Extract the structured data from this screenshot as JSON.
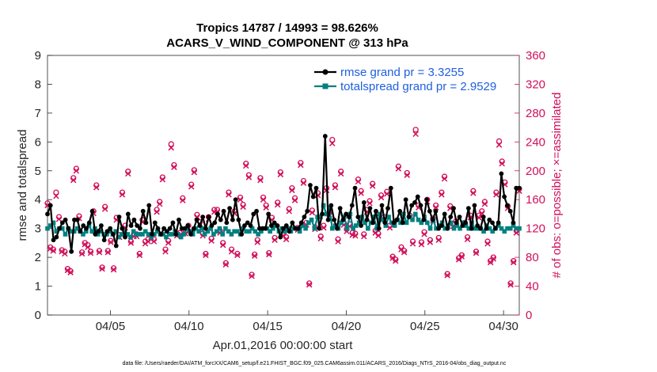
{
  "chart_data": {
    "type": "line",
    "title_line1": "Tropics 14787 / 14993 = 98.626%",
    "title_line2": "ACARS_V_WIND_COMPONENT @ 313 hPa",
    "xlabel": "Apr.01,2016 00:00:00 start",
    "ylabel_left": "rmse and totalspread",
    "ylabel_right": "# of obs: o=possible; ×=assimilated",
    "ylim_left": [
      0,
      9
    ],
    "ylim_right": [
      0,
      360
    ],
    "xlim": [
      1,
      31
    ],
    "yticks_left": [
      0,
      1,
      2,
      3,
      4,
      5,
      6,
      7,
      8,
      9
    ],
    "yticks_right": [
      0,
      40,
      80,
      120,
      160,
      200,
      240,
      280,
      320,
      360
    ],
    "xticks": [
      {
        "value": 5,
        "label": "04/05"
      },
      {
        "value": 10,
        "label": "04/10"
      },
      {
        "value": 15,
        "label": "04/15"
      },
      {
        "value": 20,
        "label": "04/20"
      },
      {
        "value": 25,
        "label": "04/25"
      },
      {
        "value": 30,
        "label": "04/30"
      }
    ],
    "series": [
      {
        "name": "rmse grand pr = 3.3255",
        "color": "#000000",
        "values": [
          3.5,
          3.8,
          2.6,
          2.7,
          3.0,
          3.2,
          3.3,
          3.0,
          2.2,
          3.3,
          3.3,
          2.9,
          3.1,
          3.0,
          3.2,
          3.6,
          2.8,
          2.9,
          3.1,
          2.6,
          2.9,
          3.0,
          2.8,
          2.4,
          3.4,
          3.0,
          2.7,
          3.5,
          3.1,
          3.3,
          3.1,
          3.0,
          3.6,
          3.2,
          3.8,
          2.8,
          3.2,
          3.0,
          2.8,
          3.0,
          2.9,
          3.0,
          3.2,
          2.8,
          3.3,
          3.0,
          3.0,
          3.1,
          2.8,
          3.0,
          3.3,
          3.1,
          3.4,
          3.0,
          3.4,
          3.1,
          3.2,
          3.5,
          3.3,
          3.6,
          3.2,
          3.7,
          3.3,
          4.0,
          3.3,
          2.8,
          3.1,
          3.2,
          3.1,
          3.5,
          3.6,
          3.0,
          3.0,
          3.0,
          3.5,
          3.1,
          3.2,
          3.1,
          2.7,
          3.0,
          3.1,
          2.9,
          3.2,
          3.0,
          3.0,
          3.2,
          3.4,
          3.6,
          4.5,
          4.1,
          4.4,
          3.0,
          3.5,
          6.2,
          3.3,
          3.8,
          3.3,
          3.0,
          3.7,
          3.3,
          3.5,
          3.4,
          3.8,
          4.4,
          3.4,
          3.1,
          3.9,
          3.3,
          3.7,
          3.2,
          3.6,
          3.0,
          3.8,
          3.2,
          3.7,
          4.4,
          3.2,
          3.3,
          3.6,
          3.2,
          4.0,
          3.4,
          3.8,
          3.9,
          4.1,
          3.8,
          3.3,
          4.0,
          3.6,
          3.3,
          3.6,
          3.0,
          3.1,
          3.5,
          3.0,
          3.4,
          3.7,
          3.2,
          3.4,
          3.1,
          3.2,
          3.7,
          3.0,
          3.8,
          3.1,
          3.0,
          3.4,
          3.0,
          3.3,
          3.2,
          3.0,
          3.2,
          4.9,
          4.1,
          3.8,
          3.6,
          3.2,
          4.4,
          4.4
        ]
      },
      {
        "name": "totalspread grand pr = 2.9529",
        "color": "#008080",
        "values": [
          3.0,
          3.1,
          3.2,
          2.9,
          3.0,
          3.0,
          2.8,
          3.0,
          2.9,
          2.9,
          3.0,
          2.9,
          2.8,
          2.9,
          3.1,
          2.9,
          3.0,
          2.8,
          2.9,
          2.8,
          2.8,
          2.9,
          2.8,
          2.9,
          2.7,
          2.8,
          2.9,
          2.8,
          2.7,
          2.9,
          2.8,
          2.8,
          2.8,
          2.9,
          2.8,
          2.7,
          2.8,
          2.9,
          2.8,
          2.8,
          2.7,
          2.8,
          2.8,
          2.9,
          2.8,
          2.7,
          2.8,
          3.0,
          2.9,
          2.8,
          3.0,
          2.9,
          3.0,
          2.8,
          2.9,
          3.0,
          2.8,
          2.9,
          3.0,
          2.8,
          3.0,
          2.9,
          2.8,
          2.9,
          2.9,
          2.8,
          3.0,
          2.9,
          2.9,
          3.0,
          2.9,
          2.8,
          2.9,
          3.0,
          3.0,
          2.9,
          3.0,
          3.1,
          2.9,
          3.0,
          2.9,
          3.0,
          2.9,
          3.0,
          3.0,
          2.9,
          3.1,
          3.0,
          3.2,
          3.3,
          3.0,
          3.4,
          3.4,
          3.8,
          3.5,
          3.7,
          3.0,
          3.1,
          3.0,
          3.2,
          3.4,
          3.0,
          3.5,
          3.0,
          3.1,
          3.2,
          3.4,
          3.2,
          3.0,
          3.2,
          3.4,
          3.0,
          3.5,
          3.3,
          3.1,
          3.4,
          3.2,
          3.1,
          3.3,
          3.2,
          3.5,
          3.2,
          3.4,
          3.3,
          3.5,
          3.3,
          3.2,
          3.4,
          3.2,
          3.0,
          3.3,
          3.0,
          3.1,
          3.2,
          3.0,
          3.1,
          3.2,
          3.0,
          3.1,
          3.0,
          3.2,
          3.1,
          3.0,
          3.2,
          3.0,
          3.0,
          3.0,
          2.9,
          3.1,
          3.0,
          2.9,
          3.0,
          3.1,
          3.0,
          2.9,
          3.0,
          3.0,
          3.1,
          3.0,
          3.0
        ]
      }
    ],
    "obs_possible": [
      155,
      94,
      91,
      170,
      136,
      90,
      88,
      64,
      61,
      190,
      203,
      137,
      87,
      100,
      97,
      88,
      144,
      180,
      89,
      66,
      150,
      89,
      103,
      65,
      135,
      111,
      170,
      124,
      199,
      102,
      112,
      112,
      85,
      132,
      102,
      105,
      111,
      105,
      146,
      157,
      191,
      91,
      103,
      237,
      208,
      113,
      114,
      162,
      116,
      124,
      181,
      201,
      139,
      129,
      113,
      85,
      136,
      106,
      146,
      146,
      117,
      100,
      72,
      170,
      91,
      144,
      85,
      163,
      153,
      210,
      194,
      56,
      84,
      104,
      190,
      163,
      152,
      86,
      135,
      107,
      156,
      198,
      113,
      108,
      147,
      176,
      162,
      121,
      211,
      186,
      128,
      44,
      145,
      122,
      169,
      109,
      124,
      176,
      142,
      243,
      180,
      105,
      199,
      128,
      119,
      126,
      114,
      113,
      188,
      172,
      112,
      146,
      158,
      182,
      117,
      113,
      166,
      136,
      171,
      124,
      81,
      77,
      206,
      94,
      89,
      197,
      138,
      102,
      257,
      152,
      101,
      115,
      160,
      104,
      134,
      152,
      107,
      170,
      192,
      57,
      151,
      126,
      130,
      79,
      83,
      128,
      108,
      138,
      172,
      88,
      138,
      144,
      157,
      102,
      75,
      80,
      170,
      241,
      213,
      184,
      151,
      44,
      75,
      117,
      175
    ],
    "obs_assimilated": [
      152,
      92,
      89,
      165,
      133,
      88,
      85,
      62,
      59,
      187,
      200,
      134,
      85,
      98,
      94,
      86,
      141,
      177,
      87,
      64,
      147,
      87,
      101,
      63,
      132,
      108,
      167,
      121,
      196,
      100,
      109,
      109,
      83,
      129,
      99,
      102,
      108,
      102,
      143,
      154,
      188,
      88,
      100,
      232,
      205,
      110,
      111,
      159,
      113,
      121,
      178,
      198,
      136,
      126,
      110,
      83,
      133,
      103,
      143,
      143,
      114,
      97,
      70,
      167,
      88,
      141,
      83,
      160,
      150,
      207,
      191,
      54,
      82,
      101,
      187,
      160,
      149,
      84,
      132,
      104,
      153,
      195,
      110,
      105,
      144,
      173,
      159,
      118,
      208,
      183,
      125,
      42,
      142,
      119,
      166,
      106,
      121,
      173,
      139,
      238,
      177,
      102,
      196,
      125,
      116,
      123,
      111,
      110,
      185,
      169,
      109,
      143,
      155,
      179,
      114,
      110,
      163,
      133,
      168,
      121,
      79,
      75,
      203,
      91,
      87,
      194,
      135,
      99,
      251,
      149,
      98,
      112,
      157,
      101,
      131,
      149,
      104,
      167,
      189,
      55,
      148,
      123,
      127,
      77,
      81,
      125,
      105,
      135,
      169,
      86,
      135,
      141,
      154,
      99,
      73,
      78,
      167,
      236,
      210,
      181,
      148,
      42,
      73,
      114,
      172
    ]
  },
  "legend": {
    "rmse": "rmse grand pr = 3.3255",
    "spread": "totalspread grand pr = 2.9529"
  },
  "footer": "data file: /Users/raeder/DAI/ATM_forcXX/CAM6_setup/f.e21.FHIST_BGC.f09_025.CAM6assim.011/ACARS_2016/Diags_NTrS_2016-04/obs_diag_output.nc",
  "colors": {
    "rmse": "#000000",
    "spread": "#008080",
    "obs": "#d10f5a",
    "legend_text": "#1f5fe0"
  }
}
